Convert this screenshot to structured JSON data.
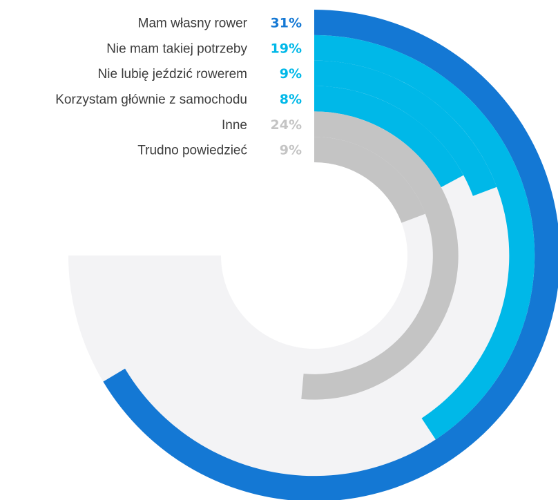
{
  "chart_data": {
    "type": "radial-bar",
    "title": "",
    "max_value": 35,
    "colors": {
      "background_track": "#f3f3f5",
      "label_text": "#3c3c3c"
    },
    "series": [
      {
        "label": "Mam własny rower",
        "value": 31,
        "value_label": "31%",
        "color": "#1478d4"
      },
      {
        "label": "Nie mam takiej potrzeby",
        "value": 19,
        "value_label": "19%",
        "color": "#00b8e8"
      },
      {
        "label": "Nie lubię jeździć rowerem",
        "value": 9,
        "value_label": "9%",
        "color": "#00b8e8"
      },
      {
        "label": "Korzystam głównie z samochodu",
        "value": 8,
        "value_label": "8%",
        "color": "#00b8e8"
      },
      {
        "label": "Inne",
        "value": 24,
        "value_label": "24%",
        "color": "#c4c4c4"
      },
      {
        "label": "Trudno powiedzieć",
        "value": 9,
        "value_label": "9%",
        "color": "#c4c4c4"
      }
    ]
  }
}
